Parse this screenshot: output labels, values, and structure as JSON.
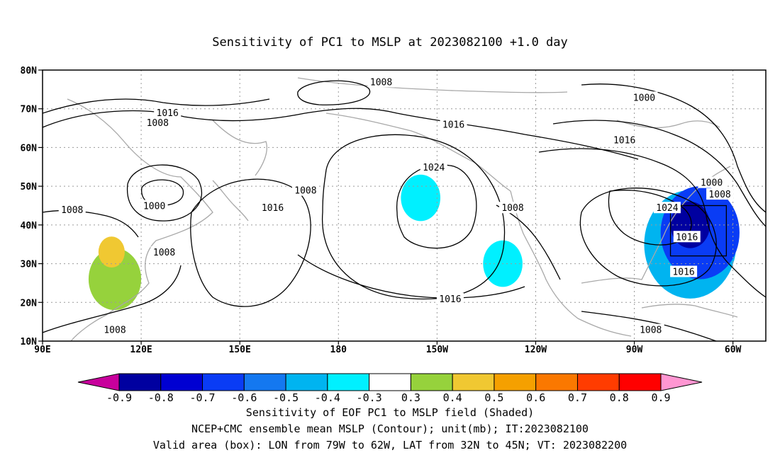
{
  "title": "Sensitivity of PC1 to MSLP at 2023082100 +1.0 day",
  "map": {
    "lat_labels": [
      "80N",
      "70N",
      "60N",
      "50N",
      "40N",
      "30N",
      "20N",
      "10N"
    ],
    "lon_labels": [
      "90E",
      "120E",
      "150E",
      "180",
      "150W",
      "120W",
      "90W",
      "60W"
    ],
    "extent": {
      "lon_min": 90,
      "lon_max": 310,
      "lat_min": 10,
      "lat_max": 80
    },
    "gridlines": "dotted",
    "contour_labels": [
      {
        "text": "1008",
        "lon": 193,
        "lat": 77
      },
      {
        "text": "1016",
        "lon": 128,
        "lat": 69
      },
      {
        "text": "1008",
        "lon": 125,
        "lat": 66.5
      },
      {
        "text": "1016",
        "lon": 215,
        "lat": 66
      },
      {
        "text": "1000",
        "lon": 273,
        "lat": 73
      },
      {
        "text": "1016",
        "lon": 267,
        "lat": 62
      },
      {
        "text": "1024",
        "lon": 209,
        "lat": 55
      },
      {
        "text": "1000",
        "lon": 293.5,
        "lat": 51
      },
      {
        "text": "1008",
        "lon": 296,
        "lat": 48
      },
      {
        "text": "1008",
        "lon": 170,
        "lat": 49
      },
      {
        "text": "1000",
        "lon": 124,
        "lat": 45
      },
      {
        "text": "1008",
        "lon": 99,
        "lat": 44
      },
      {
        "text": "1016",
        "lon": 160,
        "lat": 44.5
      },
      {
        "text": "1008",
        "lon": 233,
        "lat": 44.5
      },
      {
        "text": "1024",
        "lon": 280,
        "lat": 44.5
      },
      {
        "text": "1016",
        "lon": 286,
        "lat": 37
      },
      {
        "text": "1008",
        "lon": 127,
        "lat": 33
      },
      {
        "text": "1016",
        "lon": 285,
        "lat": 28
      },
      {
        "text": "1016",
        "lon": 214,
        "lat": 21
      },
      {
        "text": "1008",
        "lon": 112,
        "lat": 13
      },
      {
        "text": "1008",
        "lon": 275,
        "lat": 13
      }
    ],
    "valid_box": {
      "lon_min": 281,
      "lon_max": 298,
      "lat_min": 32,
      "lat_max": 45
    }
  },
  "colorbar": {
    "labels": [
      "-0.9",
      "-0.8",
      "-0.7",
      "-0.6",
      "-0.5",
      "-0.4",
      "-0.3",
      "0.3",
      "0.4",
      "0.5",
      "0.6",
      "0.7",
      "0.8",
      "0.9"
    ],
    "colors": [
      "#c8009c",
      "#0000a0",
      "#0000d2",
      "#0a3cf5",
      "#1478f0",
      "#00b4f0",
      "#00f0ff",
      "#ffffff",
      "#96d23c",
      "#f0c832",
      "#f5a000",
      "#fa7800",
      "#ff3c00",
      "#ff0000",
      "#ff96d2"
    ]
  },
  "footer": {
    "line1": "Sensitivity of EOF PC1 to MSLP field (Shaded)",
    "line2": "NCEP+CMC ensemble mean MSLP (Contour); unit(mb); IT:2023082100",
    "line3": "Valid area (box): LON from 79W to 62W, LAT from 32N to 45N; VT: 2023082200"
  },
  "shading": [
    {
      "color": "#0000a0",
      "lon": 287,
      "lat": 40,
      "r": 6
    },
    {
      "color": "#0a3cf5",
      "lon": 290,
      "lat": 38,
      "r": 12
    },
    {
      "color": "#00b4f0",
      "lon": 287,
      "lat": 35,
      "r": 14
    },
    {
      "color": "#00f0ff",
      "lon": 230,
      "lat": 30,
      "r": 6
    },
    {
      "color": "#00f0ff",
      "lon": 205,
      "lat": 47,
      "r": 6
    },
    {
      "color": "#f0c832",
      "lon": 111,
      "lat": 33,
      "r": 4
    },
    {
      "color": "#96d23c",
      "lon": 112,
      "lat": 26,
      "r": 8
    }
  ]
}
